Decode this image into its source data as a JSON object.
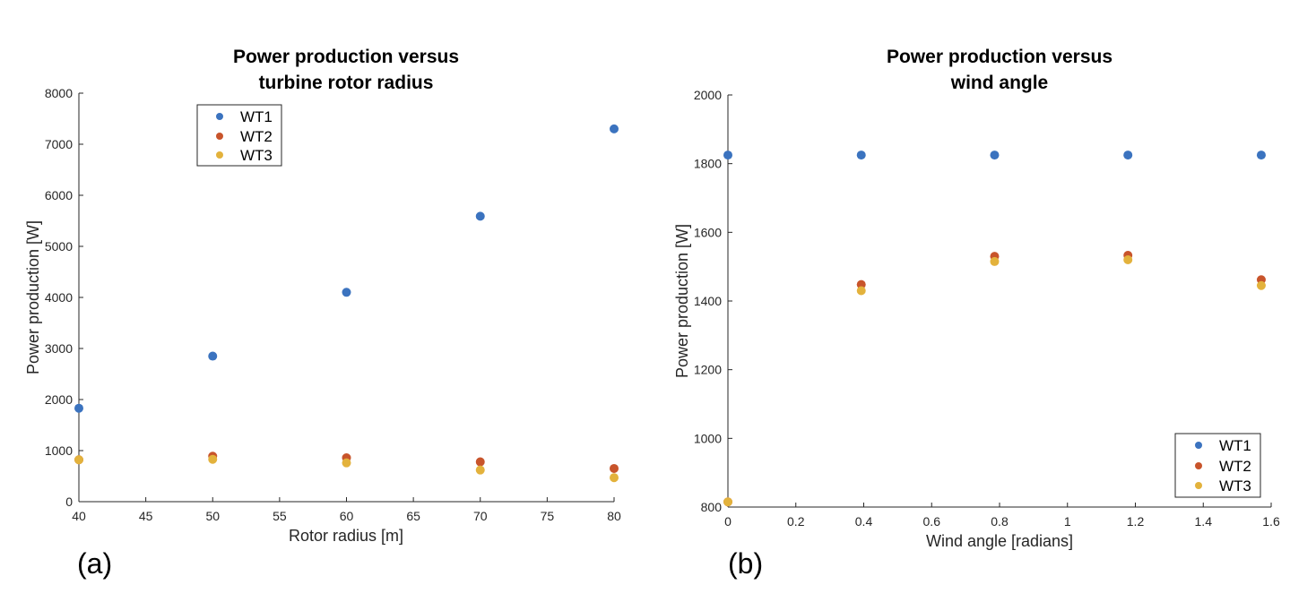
{
  "chart_data": [
    {
      "type": "scatter",
      "panel_label": "(a)",
      "title_lines": [
        "Power production versus",
        "turbine rotor radius"
      ],
      "xlabel": "Rotor radius [m]",
      "ylabel": "Power production [W]",
      "xlim": [
        40,
        80
      ],
      "ylim": [
        0,
        8000
      ],
      "xticks": [
        40,
        45,
        50,
        55,
        60,
        65,
        70,
        75,
        80
      ],
      "yticks": [
        0,
        1000,
        2000,
        3000,
        4000,
        5000,
        6000,
        7000,
        8000
      ],
      "grid": false,
      "legend_position": "top-left",
      "x": [
        40,
        50,
        60,
        70,
        80
      ],
      "series": [
        {
          "name": "WT1",
          "color": "#3B73BF",
          "values": [
            1830,
            2850,
            4100,
            5590,
            7300
          ]
        },
        {
          "name": "WT2",
          "color": "#C8542B",
          "values": [
            820,
            890,
            860,
            780,
            650
          ]
        },
        {
          "name": "WT3",
          "color": "#E3B23C",
          "values": [
            820,
            830,
            760,
            620,
            470
          ]
        }
      ]
    },
    {
      "type": "scatter",
      "panel_label": "(b)",
      "title_lines": [
        "Power production versus",
        "wind angle"
      ],
      "xlabel": "Wind angle [radians]",
      "ylabel": "Power production [W]",
      "xlim": [
        0,
        1.6
      ],
      "ylim": [
        800,
        2000
      ],
      "xticks": [
        0,
        0.2,
        0.4,
        0.6,
        0.8,
        1,
        1.2,
        1.4,
        1.6
      ],
      "yticks": [
        800,
        1000,
        1200,
        1400,
        1600,
        1800,
        2000
      ],
      "grid": false,
      "legend_position": "bottom-right",
      "x": [
        0,
        0.3927,
        0.7854,
        1.1781,
        1.5708
      ],
      "series": [
        {
          "name": "WT1",
          "color": "#3B73BF",
          "values": [
            1825,
            1825,
            1825,
            1825,
            1825
          ]
        },
        {
          "name": "WT2",
          "color": "#C8542B",
          "values": [
            815,
            1448,
            1530,
            1533,
            1462
          ]
        },
        {
          "name": "WT3",
          "color": "#E3B23C",
          "values": [
            815,
            1430,
            1515,
            1520,
            1445
          ]
        }
      ]
    }
  ]
}
